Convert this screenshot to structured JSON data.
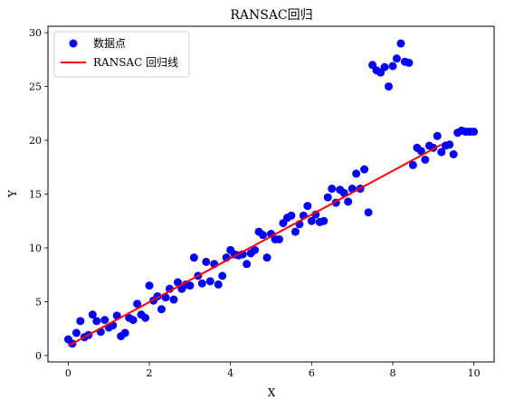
{
  "chart_data": {
    "type": "scatter",
    "title": "RANSAC回归",
    "xlabel": "X",
    "ylabel": "Y",
    "xlim": [
      -0.5,
      10.5
    ],
    "ylim": [
      -0.6,
      30.6
    ],
    "xticks": [
      0,
      2,
      4,
      6,
      8,
      10
    ],
    "yticks": [
      0,
      5,
      10,
      15,
      20,
      25,
      30
    ],
    "grid": false,
    "legend_position": "top-left",
    "series": [
      {
        "name": "数据点",
        "kind": "scatter",
        "color": "#0000ff",
        "x": [
          0.0,
          0.1,
          0.2,
          0.3,
          0.4,
          0.5,
          0.6,
          0.7,
          0.8,
          0.9,
          1.0,
          1.1,
          1.2,
          1.3,
          1.4,
          1.5,
          1.6,
          1.7,
          1.8,
          1.9,
          2.0,
          2.1,
          2.2,
          2.3,
          2.4,
          2.5,
          2.6,
          2.7,
          2.8,
          2.9,
          3.0,
          3.1,
          3.2,
          3.3,
          3.4,
          3.5,
          3.6,
          3.7,
          3.8,
          3.9,
          4.0,
          4.1,
          4.2,
          4.3,
          4.4,
          4.5,
          4.6,
          4.7,
          4.8,
          4.9,
          5.0,
          5.1,
          5.2,
          5.3,
          5.4,
          5.5,
          5.6,
          5.7,
          5.8,
          5.9,
          6.0,
          6.1,
          6.2,
          6.3,
          6.4,
          6.5,
          6.6,
          6.7,
          6.8,
          6.9,
          7.0,
          7.1,
          7.2,
          7.3,
          7.4,
          7.5,
          7.6,
          7.7,
          7.8,
          7.9,
          8.0,
          8.1,
          8.2,
          8.3,
          8.4,
          8.5,
          8.6,
          8.7,
          8.8,
          8.9,
          9.0,
          9.1,
          9.2,
          9.3,
          9.4,
          9.5,
          9.6,
          9.7,
          9.8,
          9.9,
          10.0
        ],
        "y": [
          1.5,
          1.1,
          2.1,
          3.2,
          1.7,
          1.9,
          3.8,
          3.2,
          2.2,
          3.3,
          2.6,
          2.8,
          3.7,
          1.8,
          2.1,
          3.5,
          3.3,
          4.8,
          3.8,
          3.5,
          6.5,
          5.1,
          5.5,
          4.3,
          5.4,
          6.2,
          5.2,
          6.8,
          6.2,
          6.6,
          6.5,
          9.1,
          7.4,
          6.7,
          8.7,
          6.9,
          8.5,
          6.6,
          7.4,
          9.1,
          9.8,
          9.4,
          9.3,
          9.4,
          8.5,
          9.5,
          9.8,
          11.5,
          11.2,
          9.1,
          11.3,
          10.8,
          10.8,
          12.3,
          12.8,
          13.0,
          11.5,
          12.2,
          13.0,
          13.9,
          12.5,
          13.1,
          12.4,
          12.5,
          14.7,
          15.5,
          14.2,
          15.4,
          15.1,
          14.3,
          15.5,
          16.9,
          15.5,
          17.3,
          13.3,
          27.0,
          26.5,
          26.3,
          26.8,
          25.0,
          26.9,
          27.6,
          29.0,
          27.3,
          27.2,
          17.7,
          19.3,
          19.0,
          18.2,
          19.5,
          19.3,
          20.4,
          18.9,
          19.5,
          19.6,
          18.7,
          20.7,
          20.9,
          20.8,
          20.8,
          20.8
        ]
      },
      {
        "name": "RANSAC 回归线",
        "kind": "line",
        "color": "#ff0000",
        "x": [
          0.0,
          9.2
        ],
        "y": [
          0.9,
          19.6
        ]
      }
    ]
  }
}
